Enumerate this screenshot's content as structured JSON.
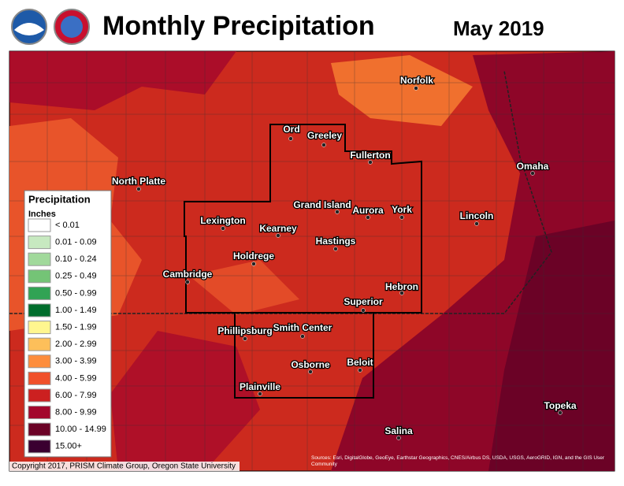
{
  "header": {
    "title": "Monthly Precipitation",
    "date": "May 2019"
  },
  "legend": {
    "title": "Precipitation",
    "units": "Inches",
    "entries": [
      {
        "label": "< 0.01",
        "color": "#ffffff"
      },
      {
        "label": "0.01 - 0.09",
        "color": "#c7e9c0"
      },
      {
        "label": "0.10 - 0.24",
        "color": "#a1d99b"
      },
      {
        "label": "0.25 - 0.49",
        "color": "#74c476"
      },
      {
        "label": "0.50 - 0.99",
        "color": "#31a354"
      },
      {
        "label": "1.00 - 1.49",
        "color": "#006d2c"
      },
      {
        "label": "1.50 - 1.99",
        "color": "#fff68f"
      },
      {
        "label": "2.00 - 2.99",
        "color": "#fdbf5a"
      },
      {
        "label": "3.00 - 3.99",
        "color": "#fd8d3c"
      },
      {
        "label": "4.00 - 5.99",
        "color": "#f0502a"
      },
      {
        "label": "6.00 - 7.99",
        "color": "#cc2020"
      },
      {
        "label": "8.00 - 9.99",
        "color": "#a3062c"
      },
      {
        "label": "10.00 - 14.99",
        "color": "#6b0226"
      },
      {
        "label": "15.00+",
        "color": "#3a0030"
      }
    ]
  },
  "cities": [
    "Ord",
    "Greeley",
    "Fullerton",
    "Norfolk",
    "Omaha",
    "North Platte",
    "Grand Island",
    "Aurora",
    "York",
    "Lincoln",
    "Lexington",
    "Kearney",
    "Hastings",
    "Holdrege",
    "Cambridge",
    "Hebron",
    "Superior",
    "Phillipsburg",
    "Smith Center",
    "Osborne",
    "Beloit",
    "Plainville",
    "Topeka",
    "Salina"
  ],
  "footer": {
    "copyright": "Copyright 2017, PRISM Climate Group, Oregon State University",
    "source": "Sources: Esri, DigitalGlobe, GeoEye, Earthstar Geographics, CNES/Airbus DS, USDA, USGS, AeroGRID, IGN, and the GIS User Community"
  }
}
